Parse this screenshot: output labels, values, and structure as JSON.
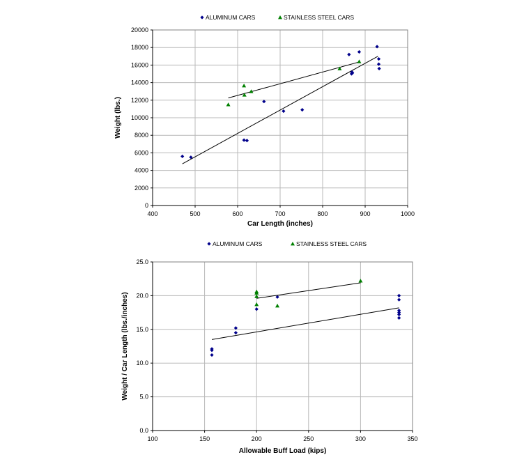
{
  "chart_data": [
    {
      "type": "scatter",
      "title": "",
      "xlabel": "Car Length (inches)",
      "ylabel": "Weight (lbs.)",
      "xlim": [
        400,
        1000
      ],
      "ylim": [
        0,
        20000
      ],
      "xticks": [
        400,
        500,
        600,
        700,
        800,
        900,
        1000
      ],
      "yticks": [
        0,
        2000,
        4000,
        6000,
        8000,
        10000,
        12000,
        14000,
        16000,
        18000,
        20000
      ],
      "grid": true,
      "legend_position": "top",
      "series": [
        {
          "name": "ALUMINUM CARS",
          "marker": "diamond",
          "color": "#00008b",
          "points": [
            [
              470,
              5600
            ],
            [
              490,
              5500
            ],
            [
              615,
              7450
            ],
            [
              622,
              7400
            ],
            [
              662,
              11850
            ],
            [
              708,
              10750
            ],
            [
              752,
              10900
            ],
            [
              862,
              17200
            ],
            [
              868,
              15000
            ],
            [
              869,
              15200
            ],
            [
              870,
              15100
            ],
            [
              886,
              17500
            ],
            [
              928,
              18100
            ],
            [
              932,
              16700
            ],
            [
              932,
              16100
            ],
            [
              933,
              15600
            ]
          ],
          "trendline": [
            [
              470,
              4750
            ],
            [
              930,
              17000
            ]
          ]
        },
        {
          "name": "STAINLESS STEEL CARS",
          "marker": "triangle",
          "color": "#008000",
          "points": [
            [
              578,
              11500
            ],
            [
              615,
              13650
            ],
            [
              616,
              12600
            ],
            [
              632,
              13000
            ],
            [
              840,
              15600
            ],
            [
              886,
              16400
            ]
          ],
          "trendline": [
            [
              578,
              12250
            ],
            [
              886,
              16350
            ]
          ]
        }
      ]
    },
    {
      "type": "scatter",
      "title": "",
      "xlabel": "Allowable Buff Load (kips)",
      "ylabel": "Weight / Car Length (lbs./inches)",
      "xlim": [
        100,
        350
      ],
      "ylim": [
        0,
        25
      ],
      "xticks": [
        100,
        150,
        200,
        250,
        300,
        350
      ],
      "yticks": [
        "0.0",
        "5.0",
        "10.0",
        "15.0",
        "20.0",
        "25.0"
      ],
      "grid": true,
      "legend_position": "top",
      "series": [
        {
          "name": "ALUMINUM CARS",
          "marker": "diamond",
          "color": "#00008b",
          "points": [
            [
              157,
              11.2
            ],
            [
              157,
              11.9
            ],
            [
              157,
              12.1
            ],
            [
              180,
              14.5
            ],
            [
              180,
              15.2
            ],
            [
              200,
              18.0
            ],
            [
              220,
              19.8
            ],
            [
              337,
              16.7
            ],
            [
              337,
              17.2
            ],
            [
              337,
              17.5
            ],
            [
              337,
              17.8
            ],
            [
              337,
              19.4
            ],
            [
              337,
              20.0
            ]
          ],
          "trendline": [
            [
              157,
              13.5
            ],
            [
              337,
              18.2
            ]
          ]
        },
        {
          "name": "STAINLESS STEEL CARS",
          "marker": "triangle",
          "color": "#008000",
          "points": [
            [
              200,
              18.7
            ],
            [
              200,
              19.9
            ],
            [
              200,
              20.4
            ],
            [
              200,
              20.6
            ],
            [
              220,
              18.5
            ],
            [
              300,
              22.2
            ]
          ],
          "trendline": [
            [
              200,
              19.6
            ],
            [
              300,
              21.9
            ]
          ]
        }
      ]
    }
  ]
}
